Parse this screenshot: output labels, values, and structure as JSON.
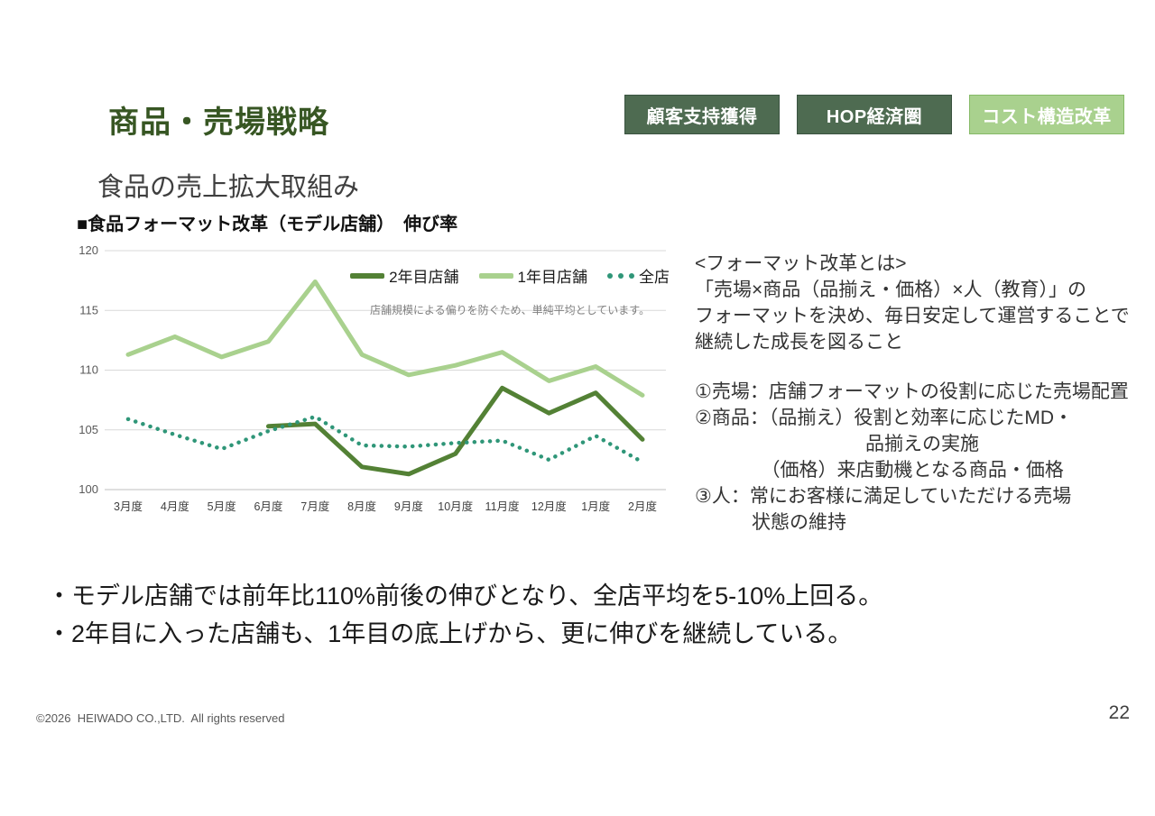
{
  "page": {
    "title": "商品・売場戦略",
    "subtitle": "食品の売上拡大取組み",
    "section_heading": "■食品フォーマット改革（モデル店舗）　伸び率",
    "footer": "©2026  HEIWADO CO.,LTD.  All rights reserved",
    "page_number": "22"
  },
  "badges": [
    {
      "label": "顧客支持獲得",
      "bg": "#4e6b51",
      "fg": "#ffffff"
    },
    {
      "label": "HOP経済圏",
      "bg": "#4e6b51",
      "fg": "#ffffff"
    },
    {
      "label": "コスト構造改革",
      "bg": "#a9d18e",
      "fg": "#ffffff"
    }
  ],
  "chart_data": {
    "type": "line",
    "title": "食品フォーマット改革（モデル店舗）　伸び率",
    "note": "店舗規模による偏りを防ぐため、単純平均としています。",
    "categories": [
      "3月度",
      "4月度",
      "5月度",
      "6月度",
      "7月度",
      "8月度",
      "9月度",
      "10月度",
      "11月度",
      "12月度",
      "1月度",
      "2月度"
    ],
    "ylim": [
      100,
      120
    ],
    "yticks": [
      100,
      105,
      110,
      115,
      120
    ],
    "grid": true,
    "legend_position": "top",
    "series": [
      {
        "name": "2年目店舗",
        "color": "#538135",
        "style": "solid",
        "width": 5,
        "z": 2,
        "values": [
          null,
          null,
          null,
          105.3,
          105.5,
          101.9,
          101.3,
          103.0,
          108.5,
          106.4,
          108.1,
          104.2
        ]
      },
      {
        "name": "1年目店舗",
        "color": "#a9d18e",
        "style": "solid",
        "width": 5,
        "z": 1,
        "values": [
          111.3,
          112.8,
          111.1,
          112.4,
          117.4,
          111.3,
          109.6,
          110.4,
          111.5,
          109.1,
          110.3,
          107.9
        ]
      },
      {
        "name": "全店",
        "color": "#2f9678",
        "style": "dotted",
        "width": 4.5,
        "z": 3,
        "values": [
          105.9,
          104.6,
          103.4,
          104.9,
          106.1,
          103.7,
          103.6,
          103.9,
          104.1,
          102.5,
          104.5,
          102.3
        ]
      }
    ]
  },
  "explainer": {
    "heading": "<フォーマット改革とは>",
    "intro": [
      "「売場×商品（品揃え・価格）×人（教育）」の",
      "フォーマットを決め、毎日安定して運営することで",
      "継続した成長を図ること"
    ],
    "points": [
      "①売場：店舗フォーマットの役割に応じた売場配置",
      "②商品：（品揃え）役割と効率に応じたMD・",
      "　　　　　　　　　品揃えの実施",
      "　　　　（価格）来店動機となる商品・価格",
      "③人：常にお客様に満足していただける売場",
      "　　　状態の維持"
    ]
  },
  "bullets": [
    "・モデル店舗では前年比110%前後の伸びとなり、全店平均を5-10%上回る。",
    "・2年目に入った店舗も、1年目の底上げから、更に伸びを継続している。"
  ]
}
